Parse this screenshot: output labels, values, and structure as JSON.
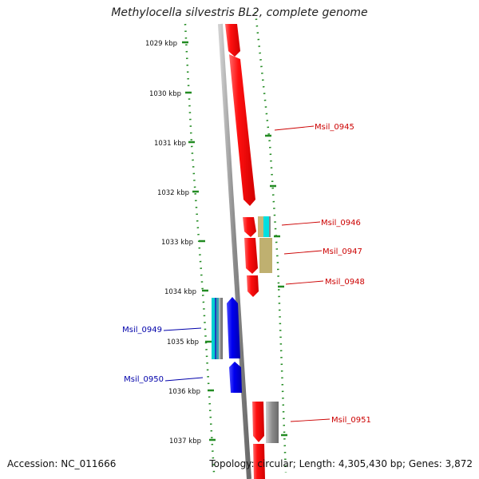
{
  "title": "Methylocella silvestris BL2, complete genome",
  "accession": "Accession: NC_011666",
  "summary": "Topology: circular; Length: 4,305,430 bp; Genes: 3,872",
  "ticks": [
    "1029 kbp",
    "1030 kbp",
    "1031 kbp",
    "1032 kbp",
    "1033 kbp",
    "1034 kbp",
    "1035 kbp",
    "1036 kbp",
    "1037 kbp"
  ],
  "genes": [
    {
      "name": "Msil_0945",
      "strand": "forward",
      "color": "#cc0000"
    },
    {
      "name": "Msil_0946",
      "strand": "forward",
      "color": "#cc0000"
    },
    {
      "name": "Msil_0947",
      "strand": "forward",
      "color": "#cc0000"
    },
    {
      "name": "Msil_0948",
      "strand": "forward",
      "color": "#cc0000"
    },
    {
      "name": "Msil_0949",
      "strand": "reverse",
      "color": "#0000aa"
    },
    {
      "name": "Msil_0950",
      "strand": "reverse",
      "color": "#0000aa"
    },
    {
      "name": "Msil_0951",
      "strand": "forward",
      "color": "#cc0000"
    }
  ],
  "colors": {
    "forward_cds": "#ff0000",
    "reverse_cds": "#0000dd",
    "backbone": "#888888",
    "gc_dots": "#228b22",
    "feature_cyan": "#00dede",
    "feature_tan": "#bfb070",
    "feature_gray": "#777777"
  }
}
